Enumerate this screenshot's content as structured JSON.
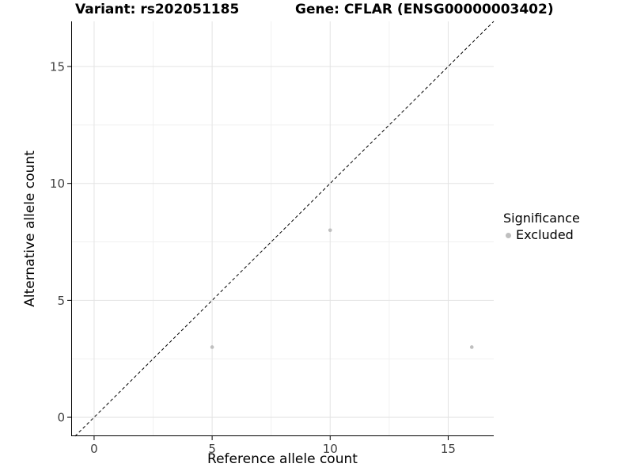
{
  "header": {
    "variant_title": "Variant: rs202051185",
    "gene_title": "Gene: CFLAR (ENSG00000003402)"
  },
  "chart_data": {
    "type": "scatter",
    "title": "Variant: rs202051185  /  Gene: CFLAR (ENSG00000003402)",
    "xlabel": "Reference allele count",
    "ylabel": "Alternative allele count",
    "xlim": [
      -0.97,
      16.93
    ],
    "ylim": [
      -0.81,
      16.93
    ],
    "xticks": [
      0,
      5,
      10,
      15
    ],
    "yticks": [
      0,
      5,
      10,
      15
    ],
    "minor_xticks": [
      2.5,
      7.5,
      12.5
    ],
    "minor_yticks": [
      2.5,
      7.5,
      12.5
    ],
    "grid": "major+minor",
    "background_color": "#ffffff",
    "major_grid_color": "#e3e3e3",
    "minor_grid_color": "#f1f1f1",
    "axis_color": "#000000",
    "tick_label_color": "#404040",
    "identity_line": {
      "style": "dashed",
      "slope": 1,
      "intercept": 0,
      "color": "#000000"
    },
    "series": [
      {
        "name": "Excluded",
        "color": "#bfbfbf",
        "points": [
          [
            5,
            3
          ],
          [
            10,
            8
          ],
          [
            16,
            3
          ]
        ]
      }
    ],
    "legend_position": "right"
  },
  "legend": {
    "title": "Significance",
    "items": [
      {
        "label": "Excluded",
        "color": "#bfbfbf"
      }
    ]
  }
}
